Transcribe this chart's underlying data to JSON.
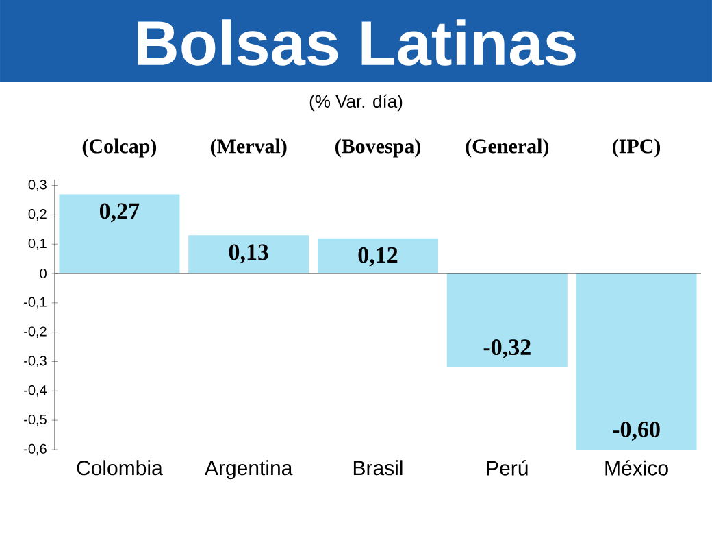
{
  "chart_data": {
    "type": "bar",
    "title": "Bolsas Latinas",
    "subtitle": "(% Var. día)",
    "categories": [
      "Colombia",
      "Argentina",
      "Brasil",
      "Perú",
      "México"
    ],
    "values": [
      0.27,
      0.13,
      0.12,
      -0.32,
      -0.6
    ],
    "value_labels": [
      "0,27",
      "0,13",
      "0,12",
      "-0,32",
      "-0,60"
    ],
    "color": "#a9e3f4",
    "ylim": [
      -0.6,
      0.32
    ],
    "yticks": [
      {
        "value": 0.3,
        "label": "0,3"
      },
      {
        "value": 0.2,
        "label": "0,2"
      },
      {
        "value": 0.1,
        "label": "0,1"
      },
      {
        "value": 0,
        "label": "0"
      },
      {
        "value": -0.1,
        "label": "-0,1"
      },
      {
        "value": -0.2,
        "label": "-0,2"
      },
      {
        "value": -0.3,
        "label": "-0,3"
      },
      {
        "value": -0.4,
        "label": "-0,4"
      },
      {
        "value": -0.5,
        "label": "-0,5"
      },
      {
        "value": -0.6,
        "label": "-0,6"
      }
    ],
    "annotations": [
      "(Colcap)",
      "(Merval)",
      "(Bovespa)",
      "(General)",
      "(IPC)"
    ]
  }
}
